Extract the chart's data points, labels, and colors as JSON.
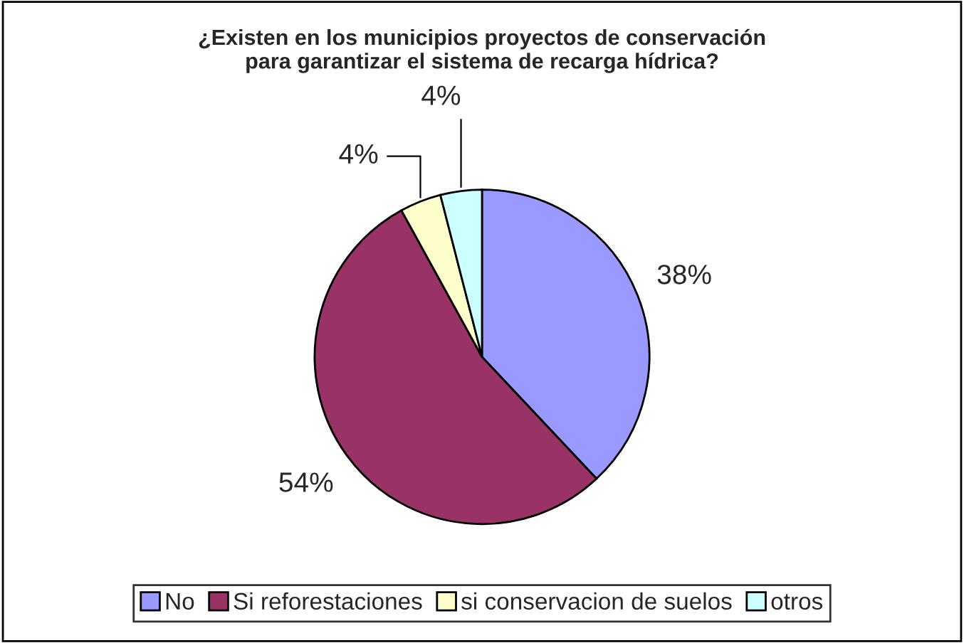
{
  "chart_data": {
    "type": "pie",
    "title": "¿Existen en los municipios proyectos de conservación\npara garantizar el sistema de recarga hídrica?",
    "categories": [
      "No",
      "Si reforestaciones",
      "si conservacion de suelos",
      "otros"
    ],
    "values": [
      38,
      54,
      4,
      4
    ],
    "value_labels": [
      "38%",
      "54%",
      "4%",
      "4%"
    ],
    "colors": [
      "#9999ff",
      "#993366",
      "#ffffcc",
      "#ccffff"
    ],
    "legend": "bottom"
  }
}
